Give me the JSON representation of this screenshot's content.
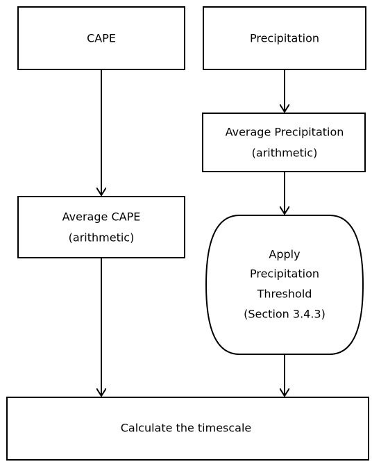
{
  "nodes": [
    {
      "lines": [
        "CAPE"
      ]
    },
    {
      "lines": [
        "Precipitation"
      ]
    },
    {
      "lines": [
        "Average Precipitation",
        "(arithmetic)"
      ]
    },
    {
      "lines": [
        "Average CAPE",
        "(arithmetic)"
      ]
    },
    {
      "lines": [
        "Apply",
        "Precipitation",
        "Threshold",
        "(Section 3.4.3)"
      ]
    },
    {
      "lines": [
        "Calculate the timescale"
      ]
    }
  ]
}
